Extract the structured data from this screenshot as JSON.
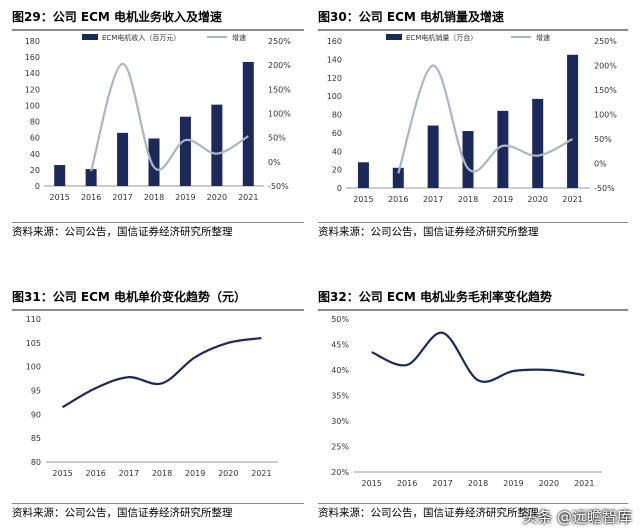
{
  "source_text": "资料来源：公司公告，国信证券经济研究所整理",
  "watermark": "头条 @远瞻智库",
  "colors": {
    "bar": "#1b2a5a",
    "growth": "#a9b6c4",
    "line": "#1b2a5a",
    "rule": "#8a8a8a"
  },
  "chart_data": [
    {
      "id": "fig29",
      "type": "bar",
      "title": "图29：公司 ECM 电机业务收入及增速",
      "categories": [
        "2015",
        "2016",
        "2017",
        "2018",
        "2019",
        "2020",
        "2021"
      ],
      "series": [
        {
          "name": "ECM电机收入（百万元）",
          "type": "bar",
          "axis": "left",
          "values": [
            26,
            21,
            66,
            59,
            86,
            101,
            154
          ]
        },
        {
          "name": "增速",
          "type": "line",
          "axis": "right",
          "values": [
            null,
            -19,
            203,
            -11,
            45,
            17,
            53
          ],
          "unit": "%"
        }
      ],
      "ylim": [
        0,
        180
      ],
      "yticks": [
        0,
        20,
        40,
        60,
        80,
        100,
        120,
        140,
        160,
        180
      ],
      "y2lim": [
        -50,
        250
      ],
      "y2ticks": [
        "-50%",
        "0%",
        "50%",
        "100%",
        "150%",
        "200%",
        "250%"
      ],
      "legend": "top"
    },
    {
      "id": "fig30",
      "type": "bar",
      "title": "图30：公司 ECM 电机销量及增速",
      "categories": [
        "2015",
        "2016",
        "2017",
        "2018",
        "2019",
        "2020",
        "2021"
      ],
      "series": [
        {
          "name": "ECM电机销量（万台）",
          "type": "bar",
          "axis": "left",
          "values": [
            28,
            22,
            68,
            62,
            84,
            97,
            145
          ]
        },
        {
          "name": "增速",
          "type": "line",
          "axis": "right",
          "values": [
            null,
            -20,
            200,
            -10,
            36,
            16,
            50
          ],
          "unit": "%"
        }
      ],
      "ylim": [
        0,
        160
      ],
      "yticks": [
        0,
        20,
        40,
        60,
        80,
        100,
        120,
        140,
        160
      ],
      "y2lim": [
        -50,
        250
      ],
      "y2ticks": [
        "-50%",
        "0%",
        "50%",
        "100%",
        "150%",
        "200%",
        "250%"
      ],
      "legend": "top"
    },
    {
      "id": "fig31",
      "type": "line",
      "title": "图31：公司 ECM 电机单价变化趋势（元）",
      "categories": [
        "2015",
        "2016",
        "2017",
        "2018",
        "2019",
        "2020",
        "2021"
      ],
      "series": [
        {
          "values": [
            91.5,
            95.5,
            97.8,
            96.5,
            102.0,
            105.0,
            106.0
          ]
        }
      ],
      "ylim": [
        80,
        110
      ],
      "yticks": [
        80,
        85,
        90,
        95,
        100,
        105,
        110
      ]
    },
    {
      "id": "fig32",
      "type": "line",
      "title": "图32：公司 ECM 电机业务毛利率变化趋势",
      "categories": [
        "2015",
        "2016",
        "2017",
        "2018",
        "2019",
        "2020",
        "2021"
      ],
      "series": [
        {
          "values": [
            43.5,
            41.0,
            47.3,
            38.0,
            39.8,
            40.0,
            39.0
          ],
          "unit": "%"
        }
      ],
      "ylim": [
        20,
        50
      ],
      "yticks": [
        "20%",
        "25%",
        "30%",
        "35%",
        "40%",
        "45%",
        "50%"
      ]
    }
  ]
}
